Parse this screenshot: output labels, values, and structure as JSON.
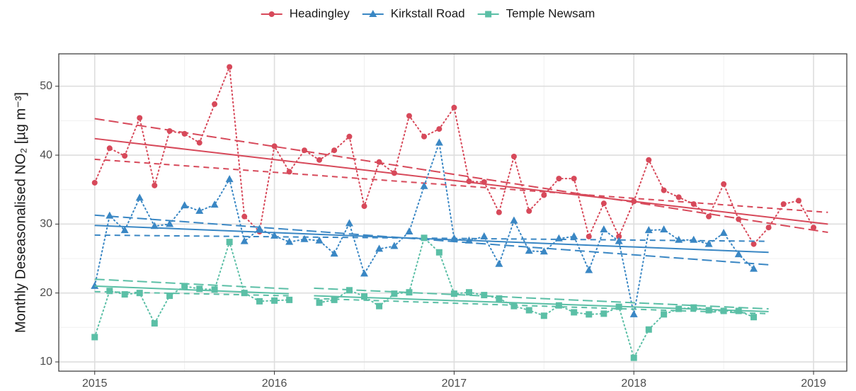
{
  "chart_data": {
    "type": "line",
    "y_label": "Monthly Deseasonalised NO₂ [µg m⁻³]",
    "x": [
      2015,
      2015.083,
      2015.167,
      2015.25,
      2015.333,
      2015.417,
      2015.5,
      2015.583,
      2015.667,
      2015.75,
      2015.833,
      2015.917,
      2016,
      2016.083,
      2016.167,
      2016.25,
      2016.333,
      2016.417,
      2016.5,
      2016.583,
      2016.667,
      2016.75,
      2016.833,
      2016.917,
      2017,
      2017.083,
      2017.167,
      2017.25,
      2017.333,
      2017.417,
      2017.5,
      2017.583,
      2017.667,
      2017.75,
      2017.833,
      2017.917,
      2018,
      2018.083,
      2018.167,
      2018.25,
      2018.333,
      2018.417,
      2018.5,
      2018.583,
      2018.667,
      2018.75,
      2018.833,
      2018.917,
      2019
    ],
    "series": [
      {
        "name": "Headingley",
        "color": "#d7495a",
        "marker": "circle",
        "values": [
          36.0,
          41.0,
          39.9,
          45.4,
          35.6,
          43.5,
          43.1,
          41.8,
          47.4,
          52.8,
          31.1,
          28.9,
          41.3,
          37.6,
          40.7,
          39.3,
          40.7,
          42.7,
          32.6,
          39.0,
          37.4,
          45.7,
          42.7,
          43.8,
          46.9,
          36.2,
          36.1,
          31.7,
          39.8,
          31.9,
          34.2,
          36.6,
          36.6,
          28.2,
          33.0,
          28.2,
          33.3,
          39.3,
          34.9,
          33.9,
          32.9,
          31.1,
          35.8,
          30.7,
          27.1,
          29.5,
          32.9,
          33.4,
          29.5
        ],
        "trend_x": [
          2015,
          2019.08
        ],
        "trend": [
          42.4,
          30.0
        ],
        "trend_upper": [
          45.3,
          28.8
        ],
        "trend_lower": [
          39.4,
          31.7
        ]
      },
      {
        "name": "Kirkstall Road",
        "color": "#3a87c4",
        "marker": "triangle",
        "values": [
          21.0,
          31.2,
          29.1,
          33.8,
          29.7,
          30.0,
          32.7,
          31.9,
          32.8,
          36.5,
          27.5,
          29.3,
          28.3,
          27.4,
          27.8,
          27.6,
          25.7,
          30.1,
          22.8,
          26.4,
          26.8,
          28.9,
          35.5,
          41.8,
          27.9,
          27.6,
          28.2,
          24.2,
          30.5,
          26.1,
          26.0,
          27.9,
          28.2,
          23.3,
          29.2,
          27.5,
          16.9,
          29.1,
          29.2,
          27.7,
          27.7,
          27.1,
          28.7,
          25.6,
          23.5,
          null,
          null,
          null,
          null
        ],
        "trend_x": [
          2015,
          2018.75
        ],
        "trend": [
          29.8,
          25.9
        ],
        "trend_upper": [
          31.3,
          24.1
        ],
        "trend_lower": [
          28.4,
          27.5
        ]
      },
      {
        "name": "Temple Newsam",
        "color": "#5bbfa6",
        "marker": "square",
        "values": [
          13.6,
          20.3,
          19.8,
          20.0,
          15.6,
          19.6,
          21.0,
          20.6,
          20.5,
          27.4,
          20.0,
          18.8,
          18.9,
          19.0,
          null,
          18.6,
          19.0,
          20.4,
          19.5,
          18.1,
          19.9,
          20.1,
          28.0,
          25.9,
          19.9,
          20.1,
          19.7,
          19.2,
          18.1,
          17.5,
          16.7,
          18.2,
          17.2,
          16.9,
          17.0,
          18.0,
          10.6,
          14.7,
          16.9,
          17.7,
          17.9,
          17.5,
          17.4,
          17.4,
          16.5,
          null,
          null,
          null,
          null
        ],
        "trend_x": [
          2015,
          2016.08,
          2016.15,
          2016.22,
          2018.75
        ],
        "trend": [
          21.0,
          19.9,
          null,
          19.6,
          17.3
        ],
        "trend_upper": [
          22.0,
          20.6,
          null,
          20.7,
          17.7
        ],
        "trend_lower": [
          20.2,
          19.6,
          null,
          19.2,
          17.0
        ]
      }
    ],
    "xlim": [
      2014.8,
      2019.185
    ],
    "xticks": [
      2015,
      2016,
      2017,
      2018,
      2019
    ],
    "ylim": [
      8.66,
      54.7
    ],
    "yticks": [
      10,
      20,
      30,
      40,
      50
    ],
    "grid": true,
    "legend": "top"
  }
}
